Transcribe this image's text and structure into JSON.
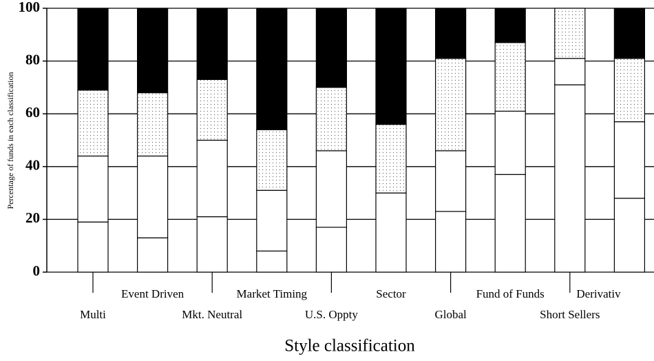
{
  "chart_data": {
    "type": "stacked-bar",
    "ylabel": "Percentage of funds in each classification",
    "xlabel": "Style classification",
    "categories": [
      "Multi",
      "Event Driven",
      "Mkt. Neutral",
      "Market Timing",
      "U.S. Oppty",
      "Sector",
      "Global",
      "Fund of Funds",
      "Short Sellers",
      "Derivativ"
    ],
    "series": [
      {
        "color": "#ffffff",
        "values": [
          19,
          13,
          21,
          8,
          17,
          30,
          23,
          37,
          71,
          28
        ]
      },
      {
        "color": "#ffffff",
        "values": [
          25,
          31,
          29,
          23,
          29,
          0,
          23,
          24,
          10,
          29
        ]
      },
      {
        "color": "#ffffff",
        "pattern": "dots",
        "values": [
          25,
          24,
          23,
          23,
          24,
          26,
          35,
          26,
          19,
          24
        ]
      },
      {
        "color": "#000000",
        "values": [
          31,
          32,
          27,
          46,
          30,
          44,
          19,
          13,
          0,
          19
        ]
      }
    ],
    "ylim": [
      0,
      100
    ],
    "yticks": [
      0,
      20,
      40,
      60,
      80,
      100
    ],
    "grid": true
  }
}
